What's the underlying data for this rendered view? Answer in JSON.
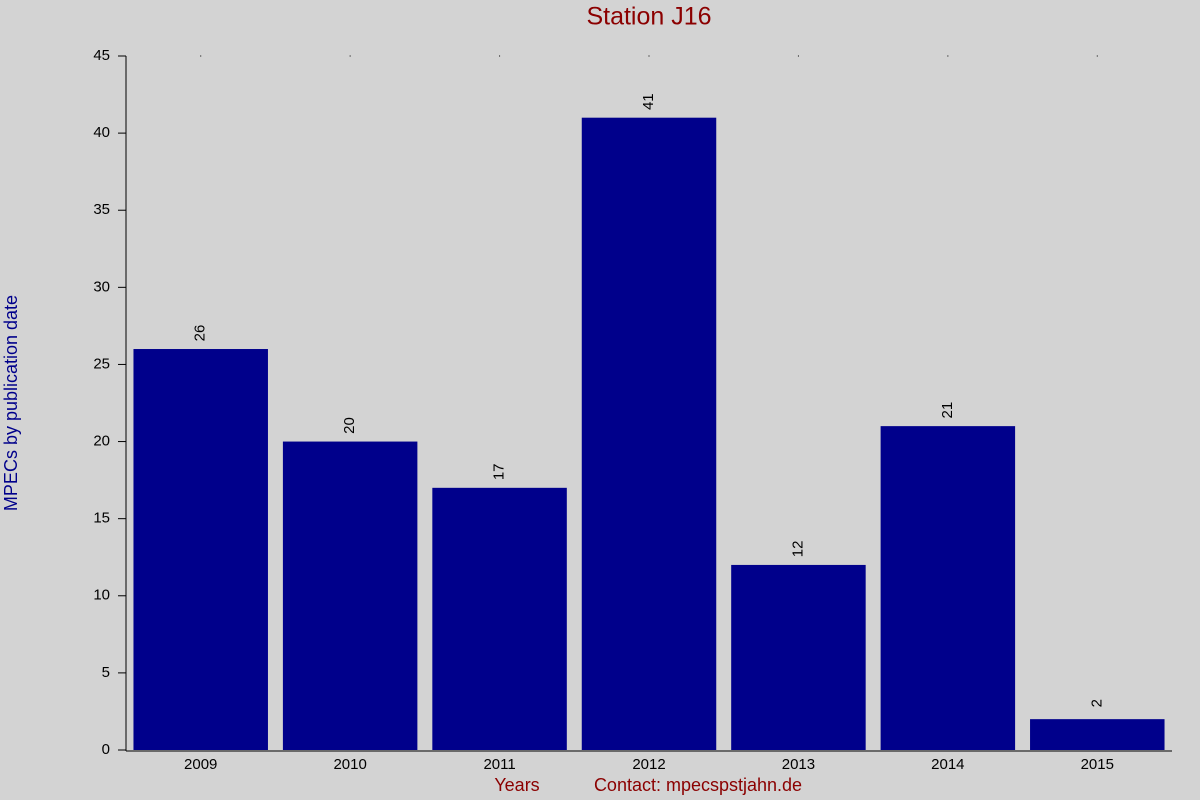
{
  "chart_data": {
    "type": "bar",
    "title": "Station J16",
    "y_label": "MPECs by publication date",
    "x_label": "Years",
    "note": "Contact: mpecspstjahn.de",
    "categories": [
      "2009",
      "2010",
      "2011",
      "2012",
      "2013",
      "2014",
      "2015"
    ],
    "values": [
      26,
      20,
      17,
      41,
      12,
      21,
      2
    ],
    "color": "#00008b",
    "ylim": [
      0,
      45
    ],
    "yticks": [
      0,
      5,
      10,
      15,
      20,
      25,
      30,
      35,
      40,
      45
    ]
  }
}
